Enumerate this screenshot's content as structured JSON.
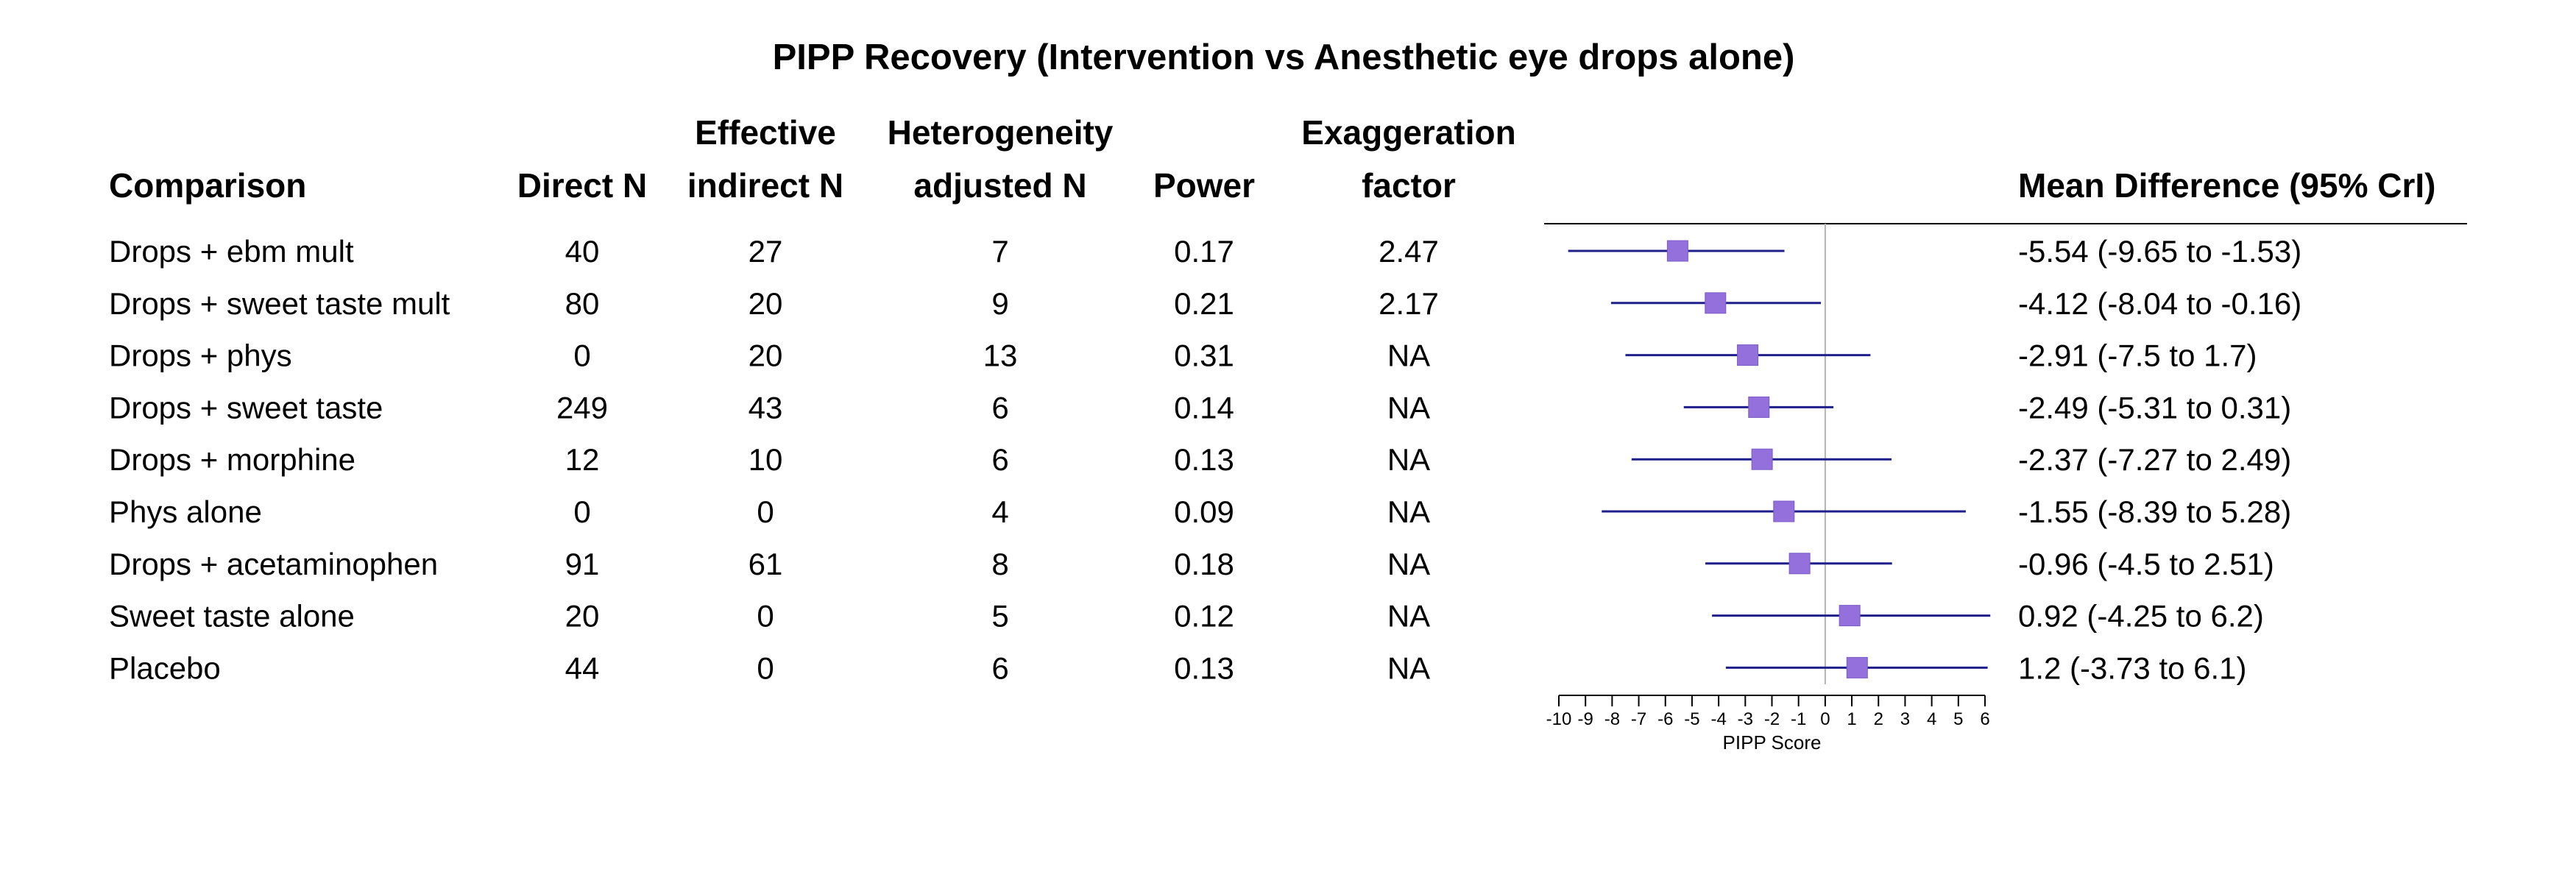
{
  "chart_data": {
    "type": "table",
    "title": "PIPP Recovery (Intervention vs Anesthetic eye drops alone)",
    "headers": {
      "comparison": [
        "Comparison"
      ],
      "direct_n": [
        "Direct N"
      ],
      "effective_indirect_n": [
        "Effective",
        "indirect N"
      ],
      "heterogeneity_adjusted_n": [
        "Heterogeneity",
        "adjusted N"
      ],
      "power": [
        "Power"
      ],
      "exaggeration_factor": [
        "Exaggeration",
        "factor"
      ],
      "mean_difference": [
        "Mean Difference (95% CrI)"
      ]
    },
    "rows": [
      {
        "comparison": "Drops + ebm mult",
        "direct_n": "40",
        "effective_indirect_n": "27",
        "heterogeneity_adjusted_n": "7",
        "power": "0.17",
        "exaggeration_factor": "2.47",
        "mean_difference": "-5.54 (-9.65 to -1.53)",
        "estimate": -5.54,
        "lower": -9.65,
        "upper": -1.53
      },
      {
        "comparison": "Drops + sweet taste mult",
        "direct_n": "80",
        "effective_indirect_n": "20",
        "heterogeneity_adjusted_n": "9",
        "power": "0.21",
        "exaggeration_factor": "2.17",
        "mean_difference": "-4.12 (-8.04 to -0.16)",
        "estimate": -4.12,
        "lower": -8.04,
        "upper": -0.16
      },
      {
        "comparison": "Drops + phys",
        "direct_n": "0",
        "effective_indirect_n": "20",
        "heterogeneity_adjusted_n": "13",
        "power": "0.31",
        "exaggeration_factor": "NA",
        "mean_difference": "-2.91 (-7.5 to 1.7)",
        "estimate": -2.91,
        "lower": -7.5,
        "upper": 1.7
      },
      {
        "comparison": "Drops + sweet taste",
        "direct_n": "249",
        "effective_indirect_n": "43",
        "heterogeneity_adjusted_n": "6",
        "power": "0.14",
        "exaggeration_factor": "NA",
        "mean_difference": "-2.49 (-5.31 to 0.31)",
        "estimate": -2.49,
        "lower": -5.31,
        "upper": 0.31
      },
      {
        "comparison": "Drops + morphine",
        "direct_n": "12",
        "effective_indirect_n": "10",
        "heterogeneity_adjusted_n": "6",
        "power": "0.13",
        "exaggeration_factor": "NA",
        "mean_difference": "-2.37 (-7.27 to 2.49)",
        "estimate": -2.37,
        "lower": -7.27,
        "upper": 2.49
      },
      {
        "comparison": "Phys alone",
        "direct_n": "0",
        "effective_indirect_n": "0",
        "heterogeneity_adjusted_n": "4",
        "power": "0.09",
        "exaggeration_factor": "NA",
        "mean_difference": "-1.55 (-8.39 to 5.28)",
        "estimate": -1.55,
        "lower": -8.39,
        "upper": 5.28
      },
      {
        "comparison": "Drops + acetaminophen",
        "direct_n": "91",
        "effective_indirect_n": "61",
        "heterogeneity_adjusted_n": "8",
        "power": "0.18",
        "exaggeration_factor": "NA",
        "mean_difference": "-0.96 (-4.5 to 2.51)",
        "estimate": -0.96,
        "lower": -4.5,
        "upper": 2.51
      },
      {
        "comparison": "Sweet taste alone",
        "direct_n": "20",
        "effective_indirect_n": "0",
        "heterogeneity_adjusted_n": "5",
        "power": "0.12",
        "exaggeration_factor": "NA",
        "mean_difference": "0.92 (-4.25 to 6.2)",
        "estimate": 0.92,
        "lower": -4.25,
        "upper": 6.2
      },
      {
        "comparison": "Placebo",
        "direct_n": "44",
        "effective_indirect_n": "0",
        "heterogeneity_adjusted_n": "6",
        "power": "0.13",
        "exaggeration_factor": "NA",
        "mean_difference": "1.2 (-3.73 to 6.1)",
        "estimate": 1.2,
        "lower": -3.73,
        "upper": 6.1
      }
    ],
    "x_axis": {
      "label": "PIPP Score",
      "xlim": [
        -10,
        6
      ],
      "ticks": [
        -10,
        -9,
        -8,
        -7,
        -6,
        -5,
        -4,
        -3,
        -2,
        -1,
        0,
        1,
        2,
        3,
        4,
        5,
        6
      ],
      "tick_labels": [
        "-10",
        "-9",
        "-8",
        "-7",
        "-6",
        "-5",
        "-4",
        "-3",
        "-2",
        "-1",
        "0",
        "1",
        "2",
        "3",
        "4",
        "5",
        "6"
      ],
      "reference_line": 0
    },
    "colors": {
      "marker": "#9370db",
      "marker_stroke": "#7a5cc6",
      "interval": "#1f1f8c",
      "reference": "#b3b3b3",
      "text": "#000000"
    },
    "grid": false,
    "legend": "none"
  }
}
